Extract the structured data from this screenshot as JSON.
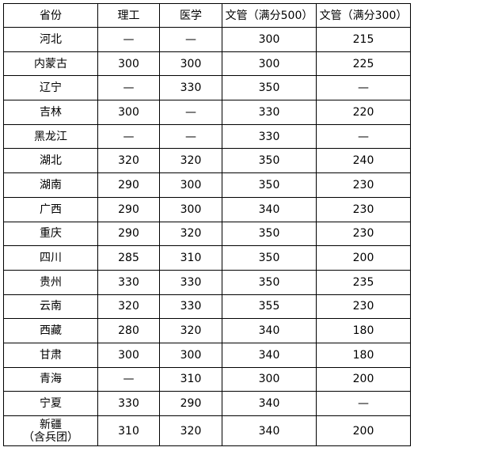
{
  "table": {
    "headers": [
      "省份",
      "理工",
      "医学",
      "文管（满分500）",
      "文管（满分300）"
    ],
    "rows": [
      [
        "河北",
        "—",
        "—",
        "300",
        "215"
      ],
      [
        "内蒙古",
        "300",
        "300",
        "300",
        "225"
      ],
      [
        "辽宁",
        "—",
        "330",
        "350",
        "—"
      ],
      [
        "吉林",
        "300",
        "—",
        "330",
        "220"
      ],
      [
        "黑龙江",
        "—",
        "—",
        "330",
        "—"
      ],
      [
        "湖北",
        "320",
        "320",
        "350",
        "240"
      ],
      [
        "湖南",
        "290",
        "300",
        "350",
        "230"
      ],
      [
        "广西",
        "290",
        "300",
        "340",
        "230"
      ],
      [
        "重庆",
        "290",
        "320",
        "350",
        "230"
      ],
      [
        "四川",
        "285",
        "310",
        "350",
        "200"
      ],
      [
        "贵州",
        "330",
        "330",
        "350",
        "235"
      ],
      [
        "云南",
        "320",
        "330",
        "355",
        "230"
      ],
      [
        "西藏",
        "280",
        "320",
        "340",
        "180"
      ],
      [
        "甘肃",
        "300",
        "300",
        "340",
        "180"
      ],
      [
        "青海",
        "—",
        "310",
        "300",
        "200"
      ],
      [
        "宁夏",
        "330",
        "290",
        "340",
        "—"
      ],
      [
        "新疆\n（含兵团）",
        "310",
        "320",
        "340",
        "200"
      ]
    ]
  }
}
